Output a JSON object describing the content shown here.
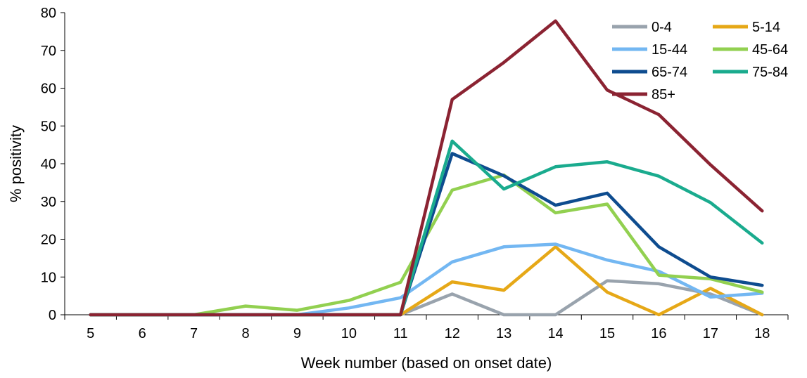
{
  "chart_data": {
    "type": "line",
    "xlabel": "Week number  (based on onset date)",
    "ylabel": "% positivity",
    "ylim": [
      0,
      80
    ],
    "yticks": [
      0,
      10,
      20,
      30,
      40,
      50,
      60,
      70,
      80
    ],
    "grid": false,
    "legend_position": "top-right",
    "categories": [
      "5",
      "6",
      "7",
      "8",
      "9",
      "10",
      "11",
      "12",
      "13",
      "14",
      "15",
      "16",
      "17",
      "18"
    ],
    "series": [
      {
        "name": "0-4",
        "color": "#99a3ad",
        "values": [
          0,
          0,
          0,
          0,
          0,
          0,
          0,
          5.5,
          0,
          0,
          9,
          8.2,
          5.5,
          0
        ]
      },
      {
        "name": "5-14",
        "color": "#e6a817",
        "values": [
          0,
          0,
          0,
          0,
          0,
          0,
          0,
          8.7,
          6.5,
          18,
          6,
          0,
          7,
          0
        ]
      },
      {
        "name": "15-44",
        "color": "#73b7f2",
        "values": [
          0,
          0,
          0,
          0,
          0,
          1.8,
          4.5,
          14,
          18,
          18.7,
          14.5,
          11.5,
          4.7,
          5.7
        ]
      },
      {
        "name": "45-64",
        "color": "#92d050",
        "values": [
          0,
          0,
          0,
          2.3,
          1.2,
          3.8,
          8.6,
          33,
          37,
          27,
          29.3,
          10.5,
          9.5,
          6
        ]
      },
      {
        "name": "65-74",
        "color": "#0e4c8f",
        "values": [
          0,
          0,
          0,
          0,
          0,
          0,
          0,
          42.7,
          36.8,
          29,
          32.2,
          18,
          10,
          7.8
        ]
      },
      {
        "name": "75-84",
        "color": "#1aab8e",
        "values": [
          0,
          0,
          0,
          0,
          0,
          0,
          0,
          46,
          33.3,
          39.2,
          40.5,
          36.7,
          29.7,
          19
        ]
      },
      {
        "name": "85+",
        "color": "#8b2332",
        "values": [
          0,
          0,
          0,
          0,
          0,
          0,
          0,
          57,
          66.8,
          77.8,
          59.5,
          53,
          39.7,
          27.5
        ]
      }
    ]
  }
}
